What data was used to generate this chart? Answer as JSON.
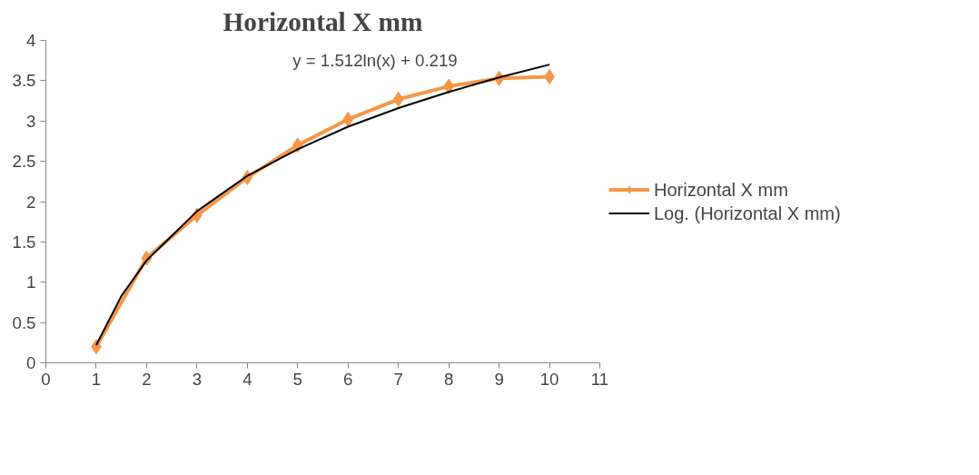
{
  "chart_data": {
    "type": "line",
    "title": "Horizontal X mm",
    "x": [
      1,
      2,
      3,
      4,
      5,
      6,
      7,
      8,
      9,
      10
    ],
    "series": [
      {
        "name": "Horizontal X mm",
        "color": "#f79646",
        "marker": "diamond",
        "values": [
          0.2,
          1.3,
          1.83,
          2.3,
          2.7,
          3.02,
          3.27,
          3.43,
          3.53,
          3.55
        ]
      },
      {
        "name": "Log. (Horizontal X mm)",
        "color": "#000000",
        "type": "line",
        "marker": "none",
        "x": [
          1,
          1.5,
          2,
          3,
          4,
          5,
          6,
          7,
          8,
          9,
          10
        ],
        "values": [
          0.22,
          0.83,
          1.27,
          1.88,
          2.32,
          2.65,
          2.93,
          3.16,
          3.36,
          3.54,
          3.7
        ]
      }
    ],
    "annotations": [
      "y = 1.512ln(x) + 0.219"
    ],
    "xlim": [
      0,
      11
    ],
    "xticks": [
      0,
      1,
      2,
      3,
      4,
      5,
      6,
      7,
      8,
      9,
      10,
      11
    ],
    "ylim": [
      0,
      4
    ],
    "yticks": [
      0,
      0.5,
      1,
      1.5,
      2,
      2.5,
      3,
      3.5,
      4
    ],
    "grid": false,
    "legend": "right"
  }
}
